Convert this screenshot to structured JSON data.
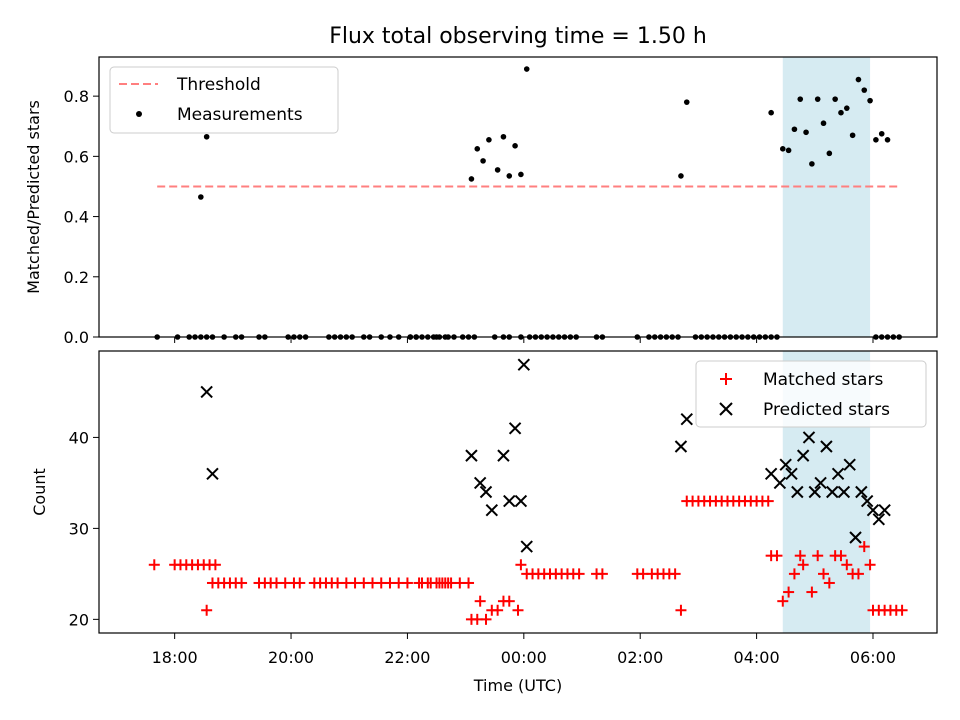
{
  "chart_data": [
    {
      "type": "scatter",
      "title": "Flux total observing time = 1.50 h",
      "xlabel": "",
      "ylabel": "Matched/Predicted stars",
      "x_unit": "hours since 00:00 UTC",
      "xlim": [
        -7.3,
        7.1
      ],
      "ylim": [
        0,
        0.93
      ],
      "yticks": [
        0.0,
        0.2,
        0.4,
        0.6,
        0.8
      ],
      "ytick_labels": [
        "0.0",
        "0.2",
        "0.4",
        "0.6",
        "0.8"
      ],
      "highlight_span": [
        4.45,
        5.95
      ],
      "threshold": {
        "label": "Threshold",
        "value": 0.5,
        "x_range": [
          -6.3,
          6.45
        ],
        "color": "#ff7f7f"
      },
      "legend": {
        "position": "top-left",
        "entries": [
          "Threshold",
          "Measurements"
        ]
      },
      "series": [
        {
          "name": "Measurements",
          "color": "#000000",
          "points": [
            [
              -6.3,
              0
            ],
            [
              -5.95,
              0
            ],
            [
              -5.75,
              0
            ],
            [
              -5.65,
              0
            ],
            [
              -5.55,
              0
            ],
            [
              -5.45,
              0
            ],
            [
              -5.35,
              0
            ],
            [
              -5.15,
              0
            ],
            [
              -4.95,
              0
            ],
            [
              -4.85,
              0
            ],
            [
              -4.55,
              0
            ],
            [
              -4.45,
              0
            ],
            [
              -4.05,
              0
            ],
            [
              -3.95,
              0
            ],
            [
              -3.85,
              0
            ],
            [
              -3.75,
              0
            ],
            [
              -3.35,
              0
            ],
            [
              -3.25,
              0
            ],
            [
              -3.15,
              0
            ],
            [
              -3.05,
              0
            ],
            [
              -2.95,
              0
            ],
            [
              -2.75,
              0
            ],
            [
              -2.65,
              0
            ],
            [
              -2.45,
              0
            ],
            [
              -2.3,
              0
            ],
            [
              -2.15,
              0
            ],
            [
              -1.95,
              0
            ],
            [
              -1.85,
              0
            ],
            [
              -1.65,
              0
            ],
            [
              -1.5,
              0
            ],
            [
              -1.35,
              0
            ],
            [
              -1.2,
              0
            ],
            [
              -1.95,
              0
            ],
            [
              -1.85,
              0
            ],
            [
              -1.75,
              0
            ],
            [
              -1.55,
              0
            ],
            [
              -1.45,
              0
            ],
            [
              -1.3,
              0
            ],
            [
              -1.05,
              0
            ],
            [
              -0.95,
              0
            ],
            [
              -0.85,
              0
            ],
            [
              -0.35,
              0
            ],
            [
              -0.25,
              0
            ],
            [
              -0.05,
              0
            ],
            [
              -5.55,
              0.465
            ],
            [
              -5.45,
              0.665
            ],
            [
              -0.9,
              0.525
            ],
            [
              -0.8,
              0.625
            ],
            [
              -0.7,
              0.585
            ],
            [
              -0.6,
              0.655
            ],
            [
              -0.45,
              0.555
            ],
            [
              -0.35,
              0.665
            ],
            [
              -0.25,
              0.535
            ],
            [
              -0.15,
              0.635
            ],
            [
              -0.05,
              0.54
            ],
            [
              0.05,
              0.89
            ],
            [
              -0.5,
              0.0
            ],
            [
              0.1,
              0
            ],
            [
              0.2,
              0
            ],
            [
              0.3,
              0
            ],
            [
              0.4,
              0
            ],
            [
              0.5,
              0
            ],
            [
              0.6,
              0
            ],
            [
              0.7,
              0
            ],
            [
              0.8,
              0
            ],
            [
              0.9,
              0
            ],
            [
              1.25,
              0
            ],
            [
              1.35,
              0
            ],
            [
              1.95,
              0
            ],
            [
              2.15,
              0
            ],
            [
              2.25,
              0
            ],
            [
              2.35,
              0
            ],
            [
              2.45,
              0
            ],
            [
              2.55,
              0
            ],
            [
              2.65,
              0
            ],
            [
              2.7,
              0.535
            ],
            [
              2.8,
              0.78
            ],
            [
              2.95,
              0
            ],
            [
              3.05,
              0
            ],
            [
              3.15,
              0
            ],
            [
              3.25,
              0
            ],
            [
              3.35,
              0
            ],
            [
              3.45,
              0
            ],
            [
              3.55,
              0
            ],
            [
              3.65,
              0
            ],
            [
              3.75,
              0
            ],
            [
              3.85,
              0
            ],
            [
              3.95,
              0
            ],
            [
              4.05,
              0
            ],
            [
              4.15,
              0
            ],
            [
              4.25,
              0
            ],
            [
              4.35,
              0
            ],
            [
              4.25,
              0.745
            ],
            [
              4.45,
              0.625
            ],
            [
              4.55,
              0.62
            ],
            [
              4.65,
              0.69
            ],
            [
              4.75,
              0.79
            ],
            [
              4.85,
              0.68
            ],
            [
              4.95,
              0.575
            ],
            [
              5.05,
              0.79
            ],
            [
              5.15,
              0.71
            ],
            [
              5.25,
              0.61
            ],
            [
              5.35,
              0.79
            ],
            [
              5.45,
              0.745
            ],
            [
              5.55,
              0.76
            ],
            [
              5.65,
              0.67
            ],
            [
              5.75,
              0.855
            ],
            [
              5.85,
              0.82
            ],
            [
              5.95,
              0.785
            ],
            [
              6.05,
              0.655
            ],
            [
              6.15,
              0.675
            ],
            [
              6.25,
              0.655
            ],
            [
              6.05,
              0
            ],
            [
              6.15,
              0
            ],
            [
              6.25,
              0
            ],
            [
              6.35,
              0
            ],
            [
              6.45,
              0
            ]
          ]
        }
      ]
    },
    {
      "type": "scatter",
      "title": "",
      "xlabel": "Time (UTC)",
      "ylabel": "Count",
      "x_unit": "hours since 00:00 UTC",
      "xlim": [
        -7.3,
        7.1
      ],
      "ylim": [
        18.5,
        49.5
      ],
      "xticks": [
        -6,
        -4,
        -2,
        0,
        2,
        4,
        6
      ],
      "xtick_labels": [
        "18:00",
        "20:00",
        "22:00",
        "00:00",
        "02:00",
        "04:00",
        "06:00"
      ],
      "yticks": [
        20,
        30,
        40
      ],
      "ytick_labels": [
        "20",
        "30",
        "40"
      ],
      "highlight_span": [
        4.45,
        5.95
      ],
      "legend": {
        "position": "top-right",
        "entries": [
          "Matched stars",
          "Predicted stars"
        ]
      },
      "series": [
        {
          "name": "Matched stars",
          "marker": "plus",
          "color": "#ff0000",
          "points": [
            [
              -6.35,
              26
            ],
            [
              -6.0,
              26
            ],
            [
              -5.9,
              26
            ],
            [
              -5.8,
              26
            ],
            [
              -5.7,
              26
            ],
            [
              -5.6,
              26
            ],
            [
              -5.5,
              26
            ],
            [
              -5.4,
              26
            ],
            [
              -5.3,
              26
            ],
            [
              -5.45,
              21
            ],
            [
              -5.35,
              24
            ],
            [
              -5.25,
              24
            ],
            [
              -5.15,
              24
            ],
            [
              -5.05,
              24
            ],
            [
              -4.95,
              24
            ],
            [
              -4.85,
              24
            ],
            [
              -4.55,
              24
            ],
            [
              -4.45,
              24
            ],
            [
              -4.35,
              24
            ],
            [
              -4.25,
              24
            ],
            [
              -4.1,
              24
            ],
            [
              -3.95,
              24
            ],
            [
              -3.85,
              24
            ],
            [
              -3.6,
              24
            ],
            [
              -3.5,
              24
            ],
            [
              -3.4,
              24
            ],
            [
              -3.3,
              24
            ],
            [
              -3.2,
              24
            ],
            [
              -3.05,
              24
            ],
            [
              -2.9,
              24
            ],
            [
              -2.75,
              24
            ],
            [
              -2.6,
              24
            ],
            [
              -2.45,
              24
            ],
            [
              -2.3,
              24
            ],
            [
              -2.15,
              24
            ],
            [
              -2.0,
              24
            ],
            [
              -1.8,
              24
            ],
            [
              -1.65,
              24
            ],
            [
              -1.5,
              24
            ],
            [
              -1.4,
              24
            ],
            [
              -1.3,
              24
            ],
            [
              -1.75,
              24
            ],
            [
              -1.6,
              24
            ],
            [
              -1.45,
              24
            ],
            [
              -1.35,
              24
            ],
            [
              -1.25,
              24
            ],
            [
              -1.1,
              24
            ],
            [
              -0.95,
              24
            ],
            [
              -0.9,
              20
            ],
            [
              -0.8,
              20
            ],
            [
              -0.75,
              22
            ],
            [
              -0.65,
              20
            ],
            [
              -0.55,
              21
            ],
            [
              -0.45,
              21
            ],
            [
              -0.35,
              22
            ],
            [
              -0.25,
              22
            ],
            [
              -0.1,
              21
            ],
            [
              -0.05,
              26
            ],
            [
              0.05,
              25
            ],
            [
              0.15,
              25
            ],
            [
              0.25,
              25
            ],
            [
              0.35,
              25
            ],
            [
              0.45,
              25
            ],
            [
              0.55,
              25
            ],
            [
              0.65,
              25
            ],
            [
              0.75,
              25
            ],
            [
              0.85,
              25
            ],
            [
              0.95,
              25
            ],
            [
              1.25,
              25
            ],
            [
              1.35,
              25
            ],
            [
              1.95,
              25
            ],
            [
              2.05,
              25
            ],
            [
              2.2,
              25
            ],
            [
              2.3,
              25
            ],
            [
              2.4,
              25
            ],
            [
              2.5,
              25
            ],
            [
              2.6,
              25
            ],
            [
              2.7,
              21
            ],
            [
              2.8,
              33
            ],
            [
              2.9,
              33
            ],
            [
              3.0,
              33
            ],
            [
              3.1,
              33
            ],
            [
              3.2,
              33
            ],
            [
              3.3,
              33
            ],
            [
              3.4,
              33
            ],
            [
              3.5,
              33
            ],
            [
              3.6,
              33
            ],
            [
              3.7,
              33
            ],
            [
              3.8,
              33
            ],
            [
              3.9,
              33
            ],
            [
              4.0,
              33
            ],
            [
              4.1,
              33
            ],
            [
              4.2,
              33
            ],
            [
              4.25,
              27
            ],
            [
              4.35,
              27
            ],
            [
              4.45,
              22
            ],
            [
              4.55,
              23
            ],
            [
              4.65,
              25
            ],
            [
              4.75,
              27
            ],
            [
              4.8,
              26
            ],
            [
              4.95,
              23
            ],
            [
              5.05,
              27
            ],
            [
              5.15,
              25
            ],
            [
              5.25,
              24
            ],
            [
              5.35,
              27
            ],
            [
              5.45,
              27
            ],
            [
              5.55,
              26
            ],
            [
              5.65,
              25
            ],
            [
              5.75,
              25
            ],
            [
              5.85,
              28
            ],
            [
              5.95,
              26
            ],
            [
              6.0,
              21
            ],
            [
              6.1,
              21
            ],
            [
              6.2,
              21
            ],
            [
              6.3,
              21
            ],
            [
              6.4,
              21
            ],
            [
              6.5,
              21
            ]
          ]
        },
        {
          "name": "Predicted stars",
          "marker": "x",
          "color": "#000000",
          "points": [
            [
              -5.45,
              45
            ],
            [
              -5.35,
              36
            ],
            [
              -0.9,
              38
            ],
            [
              -0.75,
              35
            ],
            [
              -0.65,
              34
            ],
            [
              -0.55,
              32
            ],
            [
              -0.35,
              38
            ],
            [
              -0.25,
              33
            ],
            [
              -0.15,
              41
            ],
            [
              -0.05,
              33
            ],
            [
              0.0,
              48
            ],
            [
              0.05,
              28
            ],
            [
              2.7,
              39
            ],
            [
              2.8,
              42
            ],
            [
              4.25,
              36
            ],
            [
              4.4,
              35
            ],
            [
              4.5,
              37
            ],
            [
              4.6,
              36
            ],
            [
              4.7,
              34
            ],
            [
              4.8,
              38
            ],
            [
              4.9,
              40
            ],
            [
              5.0,
              34
            ],
            [
              5.1,
              35
            ],
            [
              5.2,
              39
            ],
            [
              5.3,
              34
            ],
            [
              5.4,
              36
            ],
            [
              5.5,
              34
            ],
            [
              5.6,
              37
            ],
            [
              5.7,
              29
            ],
            [
              5.8,
              34
            ],
            [
              5.9,
              33
            ],
            [
              6.0,
              32
            ],
            [
              6.1,
              31
            ],
            [
              6.2,
              32
            ]
          ]
        }
      ]
    }
  ]
}
